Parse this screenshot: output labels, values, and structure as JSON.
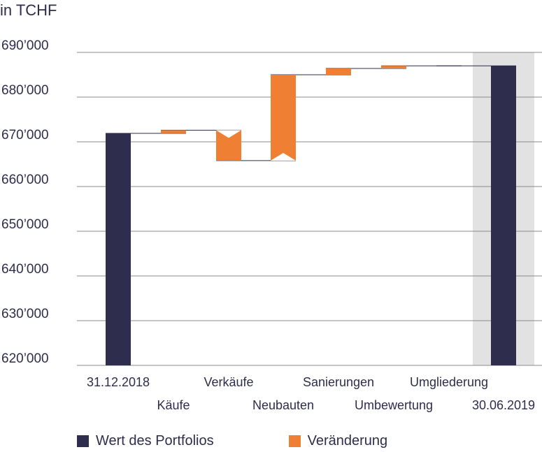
{
  "chart_data": {
    "type": "bar",
    "subtype": "waterfall",
    "unit_label": "in TCHF",
    "ylim": [
      620000,
      690000
    ],
    "y_ticks": [
      620000,
      630000,
      640000,
      650000,
      660000,
      670000,
      680000,
      690000
    ],
    "y_tick_labels": [
      "620’000",
      "630’000",
      "640’000",
      "650’000",
      "660’000",
      "670’000",
      "680’000",
      "690’000"
    ],
    "grid": true,
    "legend_position": "bottom",
    "categories": [
      "31.12.2018",
      "Käufe",
      "Verkäufe",
      "Neubauten",
      "Sanierungen",
      "Umbewertung",
      "Umgliederung",
      "30.06.2019"
    ],
    "steps": [
      {
        "category": "31.12.2018",
        "kind": "total",
        "start": 620000,
        "end": 671900
      },
      {
        "category": "Käufe",
        "kind": "change",
        "start": 671900,
        "end": 672600
      },
      {
        "category": "Verkäufe",
        "kind": "change",
        "start": 672600,
        "end": 665800
      },
      {
        "category": "Neubauten",
        "kind": "change",
        "start": 665800,
        "end": 685000
      },
      {
        "category": "Sanierungen",
        "kind": "change",
        "start": 685000,
        "end": 686400
      },
      {
        "category": "Umbewertung",
        "kind": "change",
        "start": 686400,
        "end": 687000
      },
      {
        "category": "Umgliederung",
        "kind": "change",
        "start": 687000,
        "end": 687000
      },
      {
        "category": "30.06.2019",
        "kind": "total",
        "start": 620000,
        "end": 687000
      }
    ],
    "highlight_category": "30.06.2019",
    "series": [
      {
        "name": "Wert des Portfolios",
        "color": "#2e2d4d"
      },
      {
        "name": "Veränderung",
        "color": "#ee7f33"
      }
    ],
    "colors": {
      "grid": "#8a8a8a",
      "highlight": "#e2e2e2",
      "connector": "#2e2d4d"
    }
  }
}
